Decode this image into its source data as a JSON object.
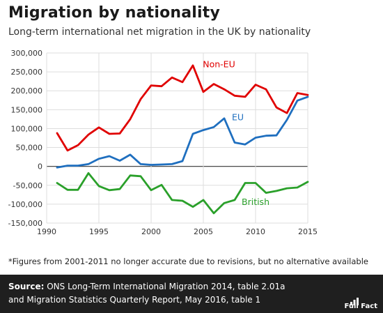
{
  "title": "Migration by nationality",
  "subtitle": "Long-term international net migration in the UK by nationality",
  "footnote": "*Figures from 2001-2011 no longer accurate due to revisions, but no alternative available",
  "source": {
    "label": "Source:",
    "line1": " ONS Long-Term International Migration 2014, table 2.01a",
    "line2": "and Migration Statistics Quarterly Report, May 2016, table 1"
  },
  "logo_text": "Full Fact",
  "chart_data": {
    "type": "line",
    "xlim": [
      1990,
      2015
    ],
    "ylim": [
      -150000,
      300000
    ],
    "x_ticks": [
      1990,
      1995,
      2000,
      2005,
      2010,
      2015
    ],
    "y_ticks": [
      -150000,
      -100000,
      -50000,
      0,
      50000,
      100000,
      150000,
      200000,
      250000,
      300000
    ],
    "y_tick_labels": [
      "-150,000",
      "-100,000",
      "-50,000",
      "0",
      "50,000",
      "100,000",
      "150,000",
      "200,000",
      "250,000",
      "300,000"
    ],
    "grid": true,
    "series": [
      {
        "name": "Non-EU",
        "color": "#e00000",
        "x": [
          1991,
          1992,
          1993,
          1994,
          1995,
          1996,
          1997,
          1998,
          1999,
          2000,
          2001,
          2002,
          2003,
          2004,
          2005,
          2006,
          2007,
          2008,
          2009,
          2010,
          2011,
          2012,
          2013,
          2014,
          2015
        ],
        "values": [
          88000,
          42000,
          56000,
          84000,
          103000,
          86000,
          87000,
          125000,
          178000,
          214000,
          212000,
          235000,
          223000,
          267000,
          197000,
          218000,
          204000,
          187000,
          184000,
          216000,
          204000,
          156000,
          141000,
          194000,
          189000
        ]
      },
      {
        "name": "EU",
        "color": "#1f6fbf",
        "x": [
          1991,
          1992,
          1993,
          1994,
          1995,
          1996,
          1997,
          1998,
          1999,
          2000,
          2001,
          2002,
          2003,
          2004,
          2005,
          2006,
          2007,
          2008,
          2009,
          2010,
          2011,
          2012,
          2013,
          2014,
          2015
        ],
        "values": [
          -3000,
          2000,
          2000,
          6000,
          20000,
          27000,
          15000,
          31000,
          6000,
          4000,
          5000,
          6000,
          14000,
          86000,
          96000,
          104000,
          127000,
          63000,
          58000,
          76000,
          81000,
          82000,
          123000,
          174000,
          184000
        ]
      },
      {
        "name": "British",
        "color": "#2aa02a",
        "x": [
          1991,
          1992,
          1993,
          1994,
          1995,
          1996,
          1997,
          1998,
          1999,
          2000,
          2001,
          2002,
          2003,
          2004,
          2005,
          2006,
          2007,
          2008,
          2009,
          2010,
          2011,
          2012,
          2013,
          2014,
          2015
        ],
        "values": [
          -44000,
          -62000,
          -62000,
          -18000,
          -52000,
          -63000,
          -60000,
          -24000,
          -26000,
          -63000,
          -49000,
          -89000,
          -91000,
          -107000,
          -89000,
          -124000,
          -97000,
          -89000,
          -44000,
          -44000,
          -70000,
          -65000,
          -58000,
          -56000,
          -41000
        ]
      }
    ],
    "labels": [
      {
        "text": "Non-EU",
        "series": 0,
        "at_x": 2006.5,
        "at_y": 262000
      },
      {
        "text": "EU",
        "series": 1,
        "at_x": 2008.3,
        "at_y": 122000
      },
      {
        "text": "British",
        "series": 2,
        "at_x": 2010,
        "at_y": -102000
      }
    ]
  }
}
